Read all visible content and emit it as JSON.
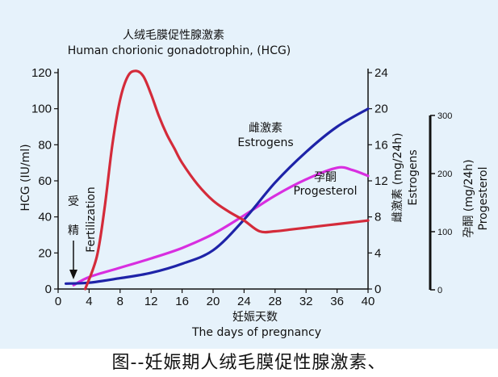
{
  "caption": "图--妊娠期人绒毛膜促性腺激素、",
  "chart_data": {
    "type": "line",
    "title_cn": "人绒毛膜促性腺激素",
    "title_en": "Human chorionic gonadotrophin,  (HCG)",
    "xlabel_cn": "妊娠天数",
    "xlabel_en": "The days of pregnancy",
    "ylabel_left": "HCG (IU/ml)",
    "ylabel_right1_cn": "雌激素 (mg/24h)",
    "ylabel_right1_en": "Estrogens",
    "ylabel_right2_cn": "孕酮 (mg/24h)",
    "ylabel_right2_en": "Progesterol",
    "fertilization_cn": [
      "受",
      "精"
    ],
    "fertilization_en": "Fertilization",
    "xlim": [
      0,
      40
    ],
    "xticks": [
      "0",
      "4",
      "8",
      "12",
      "16",
      "20",
      "24",
      "28",
      "32",
      "36",
      "40"
    ],
    "ylim_left": [
      0,
      120
    ],
    "yticks_left": [
      "0",
      "20",
      "40",
      "60",
      "80",
      "100",
      "120"
    ],
    "ylim_right1": [
      0,
      24
    ],
    "yticks_right1": [
      "0",
      "4",
      "8",
      "12",
      "16",
      "20",
      "24"
    ],
    "ylim_right2": [
      0,
      300
    ],
    "yticks_right2": [
      "0",
      "100",
      "200",
      "300"
    ],
    "series": [
      {
        "name": "HCG",
        "axis": "left",
        "color": "#d42b3a",
        "x": [
          3.5,
          5,
          6,
          7,
          8,
          9,
          10,
          11,
          12,
          13,
          14,
          15,
          16,
          18,
          20,
          22,
          24,
          26,
          28,
          30,
          32,
          34,
          36,
          38,
          40
        ],
        "y": [
          0,
          18,
          45,
          80,
          105,
          118,
          121,
          118,
          108,
          96,
          86,
          78,
          70,
          58,
          49,
          43,
          38,
          32,
          32,
          33,
          34,
          35,
          36,
          37,
          38
        ]
      },
      {
        "name": "雌激素 Estrogens",
        "axis": "right1",
        "color": "#1e23a8",
        "x": [
          1,
          4,
          8,
          12,
          16,
          20,
          24,
          28,
          32,
          36,
          40
        ],
        "y": [
          0.6,
          0.7,
          1.2,
          1.8,
          2.8,
          4.3,
          7.7,
          11.8,
          15.2,
          18.0,
          20.0
        ]
      },
      {
        "name": "孕酮 Progesterol",
        "axis": "right2",
        "color": "#d82ee0",
        "x": [
          2,
          4,
          8,
          12,
          16,
          20,
          24,
          28,
          32,
          36,
          38,
          40
        ],
        "y": [
          8,
          22,
          38,
          54,
          72,
          96,
          128,
          162,
          190,
          210,
          206,
          196
        ]
      }
    ],
    "annotations": [
      {
        "text_cn": "雌激素",
        "text_en": "Estrogens"
      },
      {
        "text_cn": "孕酮",
        "text_en": "Progesterol"
      }
    ]
  }
}
